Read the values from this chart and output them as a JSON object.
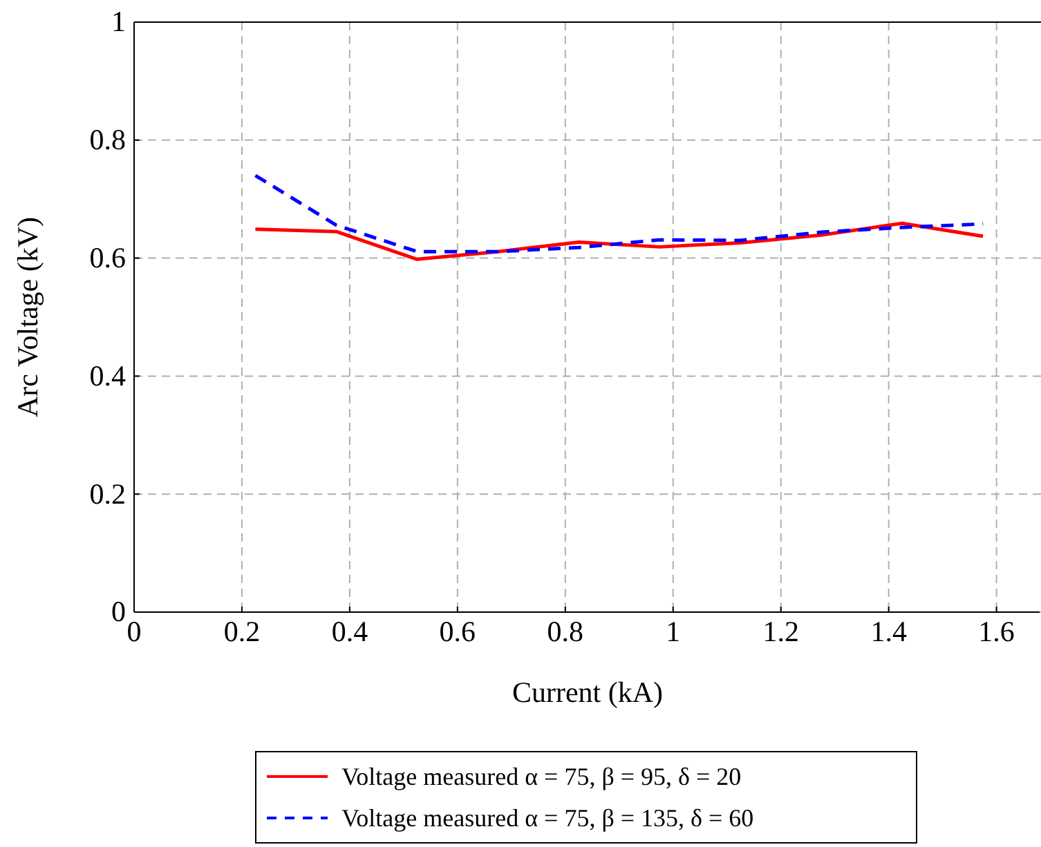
{
  "chart_data": {
    "type": "line",
    "xlabel": "Current (kA)",
    "ylabel": "Arc Voltage (kV)",
    "x": [
      0.225,
      0.375,
      0.525,
      0.675,
      0.825,
      0.975,
      1.125,
      1.275,
      1.425,
      1.575
    ],
    "series": [
      {
        "name": "Voltage measured α = 75, β = 95, δ = 20",
        "color": "#ff0000",
        "line_style": "solid",
        "values": [
          0.649,
          0.645,
          0.598,
          0.611,
          0.627,
          0.619,
          0.626,
          0.639,
          0.659,
          0.637
        ]
      },
      {
        "name": "Voltage measured α = 75, β = 135, δ = 60",
        "color": "#0000ff",
        "line_style": "dashed",
        "values": [
          0.74,
          0.656,
          0.611,
          0.611,
          0.618,
          0.631,
          0.63,
          0.644,
          0.652,
          0.658
        ]
      }
    ],
    "xlim": [
      0,
      1.68
    ],
    "xticks": [
      0,
      0.2,
      0.4,
      0.6,
      0.8,
      1,
      1.2,
      1.4,
      1.6
    ],
    "ylim": [
      0,
      1
    ],
    "yticks": [
      0,
      0.2,
      0.4,
      0.6,
      0.8,
      1
    ],
    "grid": true,
    "legend": "bottom",
    "marker": "none"
  }
}
